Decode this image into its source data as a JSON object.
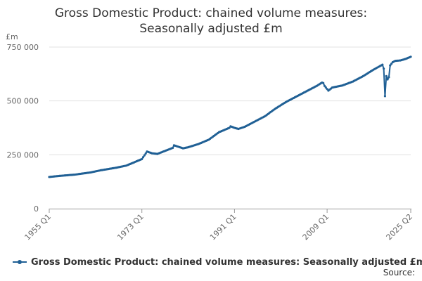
{
  "chart_data": {
    "type": "line",
    "title_lines": [
      "Gross Domestic Product: chained volume measures:",
      "Seasonally adjusted £m"
    ],
    "y_unit_label": "£m",
    "ylim": [
      0,
      750000
    ],
    "y_ticks": [
      0,
      250000,
      500000,
      750000
    ],
    "y_tick_labels": [
      "0",
      "250 000",
      "500 000",
      "750 000"
    ],
    "x_range_quarters": [
      "1955 Q1",
      "2025 Q2"
    ],
    "x_ticks": [
      "1955 Q1",
      "1973 Q1",
      "1991 Q1",
      "2009 Q1",
      "2025 Q2"
    ],
    "legend_position": "bottom",
    "grid": "horizontal",
    "color": "#206095",
    "series": [
      {
        "name": "Gross Domestic Product: chained volume measures: Seasonally adjusted £m",
        "x": [
          "1955 Q1",
          "1957 Q1",
          "1960 Q1",
          "1963 Q1",
          "1965 Q1",
          "1968 Q1",
          "1970 Q1",
          "1972 Q1",
          "1973 Q1",
          "1974 Q1",
          "1975 Q1",
          "1976 Q1",
          "1979 Q1",
          "1979 Q2",
          "1981 Q1",
          "1982 Q1",
          "1984 Q1",
          "1986 Q1",
          "1988 Q1",
          "1990 Q1",
          "1990 Q2",
          "1991 Q1",
          "1991 Q4",
          "1992 Q1",
          "1993 Q1",
          "1995 Q1",
          "1997 Q1",
          "1998 Q1",
          "1999 Q1",
          "2001 Q1",
          "2003 Q1",
          "2005 Q1",
          "2007 Q1",
          "2008 Q1",
          "2008 Q2",
          "2008 Q3",
          "2009 Q1",
          "2009 Q2",
          "2010 Q1",
          "2012 Q1",
          "2014 Q1",
          "2016 Q1",
          "2018 Q1",
          "2019 Q4",
          "2020 Q1",
          "2020 Q2",
          "2020 Q3",
          "2020 Q4",
          "2021 Q1",
          "2021 Q2",
          "2021 Q4",
          "2022 Q2",
          "2023 Q2",
          "2024 Q2",
          "2025 Q2"
        ],
        "values": [
          147000,
          152000,
          158000,
          168000,
          178000,
          190000,
          200000,
          220000,
          230000,
          265000,
          257000,
          254000,
          282000,
          294000,
          280000,
          285000,
          300000,
          320000,
          355000,
          375000,
          382000,
          375000,
          370000,
          372000,
          380000,
          405000,
          430000,
          448000,
          465000,
          495000,
          520000,
          545000,
          570000,
          585000,
          583000,
          570000,
          555000,
          548000,
          562000,
          572000,
          590000,
          615000,
          645000,
          668000,
          650000,
          522000,
          615000,
          600000,
          610000,
          665000,
          680000,
          686000,
          688000,
          695000,
          705000
        ]
      }
    ]
  },
  "legend": {
    "label": "Gross Domestic Product: chained volume measures: Seasonally adjusted £m"
  },
  "source": {
    "label": "Source:"
  }
}
